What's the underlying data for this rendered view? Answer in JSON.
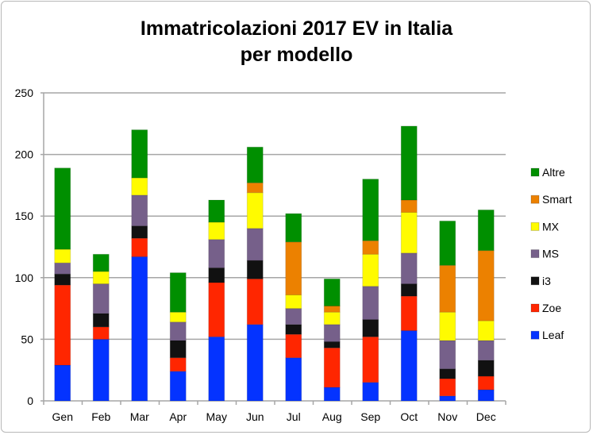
{
  "chart_data": {
    "type": "bar",
    "stacked": true,
    "title": "Immatricolazioni 2017 EV in Italia per modello",
    "title_lines": [
      "Immatricolazioni 2017 EV in Italia",
      "per modello"
    ],
    "xlabel": "",
    "ylabel": "",
    "ylim": [
      0,
      250
    ],
    "yticks": [
      0,
      50,
      100,
      150,
      200,
      250
    ],
    "grid": true,
    "legend": "right",
    "categories": [
      "Gen",
      "Feb",
      "Mar",
      "Apr",
      "May",
      "Jun",
      "Jul",
      "Aug",
      "Sep",
      "Oct",
      "Nov",
      "Dec"
    ],
    "series": [
      {
        "name": "Leaf",
        "color": "#0433ff",
        "values": [
          29,
          50,
          117,
          24,
          52,
          62,
          35,
          11,
          15,
          57,
          4,
          9
        ]
      },
      {
        "name": "Zoe",
        "color": "#ff2600",
        "values": [
          65,
          10,
          15,
          11,
          44,
          37,
          19,
          32,
          37,
          28,
          14,
          11
        ]
      },
      {
        "name": "i3",
        "color": "#111111",
        "values": [
          9,
          11,
          10,
          14,
          12,
          15,
          8,
          5,
          14,
          10,
          8,
          13
        ]
      },
      {
        "name": "MS",
        "color": "#76608a",
        "values": [
          9,
          24,
          25,
          15,
          23,
          26,
          13,
          14,
          27,
          25,
          23,
          16
        ]
      },
      {
        "name": "MX",
        "color": "#fffb00",
        "values": [
          11,
          10,
          14,
          8,
          14,
          29,
          11,
          10,
          26,
          33,
          23,
          16
        ]
      },
      {
        "name": "Smart",
        "color": "#ec8100",
        "values": [
          0,
          0,
          0,
          0,
          0,
          8,
          43,
          5,
          11,
          10,
          38,
          57
        ]
      },
      {
        "name": "Altre",
        "color": "#008f00",
        "values": [
          66,
          14,
          39,
          32,
          18,
          29,
          23,
          22,
          50,
          60,
          36,
          33
        ]
      }
    ]
  }
}
